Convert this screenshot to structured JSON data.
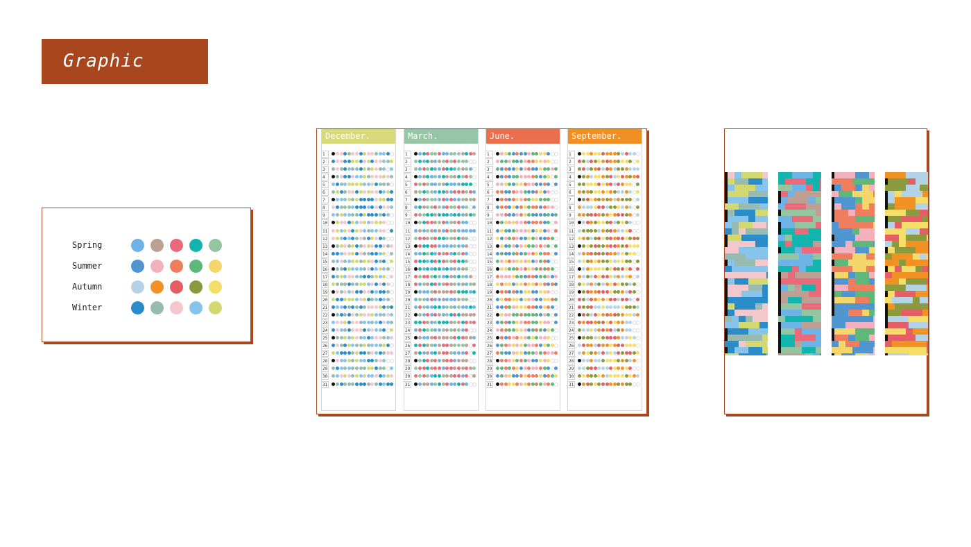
{
  "header": {
    "title": "Graphic"
  },
  "legend": {
    "seasons": [
      {
        "label": "Spring",
        "colors": [
          "#6db3e6",
          "#bf9f94",
          "#e96a78",
          "#12b5ad",
          "#94c4a0"
        ]
      },
      {
        "label": "Summer",
        "colors": [
          "#4f95cf",
          "#f3b1bd",
          "#ef7e5f",
          "#5db87a",
          "#f5d66a"
        ]
      },
      {
        "label": "Autumn",
        "colors": [
          "#b5d3e6",
          "#f19224",
          "#e55d65",
          "#8a9a3c",
          "#f5de68"
        ]
      },
      {
        "label": "Winter",
        "colors": [
          "#2a8cc8",
          "#97bbb0",
          "#f2c8cd",
          "#87c4eb",
          "#d4d870"
        ]
      }
    ]
  },
  "calendar": {
    "months": [
      {
        "label": "December.",
        "color": "#d8d97a",
        "season": 3
      },
      {
        "label": "March.",
        "color": "#97c6a6",
        "season": 0
      },
      {
        "label": "June.",
        "color": "#ea6f4e",
        "season": 1
      },
      {
        "label": "September.",
        "color": "#f08f24",
        "season": 2
      }
    ],
    "days": [
      "1",
      "2",
      "3",
      "4",
      "5",
      "6",
      "7",
      "8",
      "9",
      "10",
      "11",
      "12",
      "13",
      "14",
      "15",
      "16",
      "17",
      "18",
      "19",
      "20",
      "21",
      "22",
      "23",
      "24",
      "25",
      "26",
      "27",
      "28",
      "29",
      "30",
      "31"
    ]
  }
}
